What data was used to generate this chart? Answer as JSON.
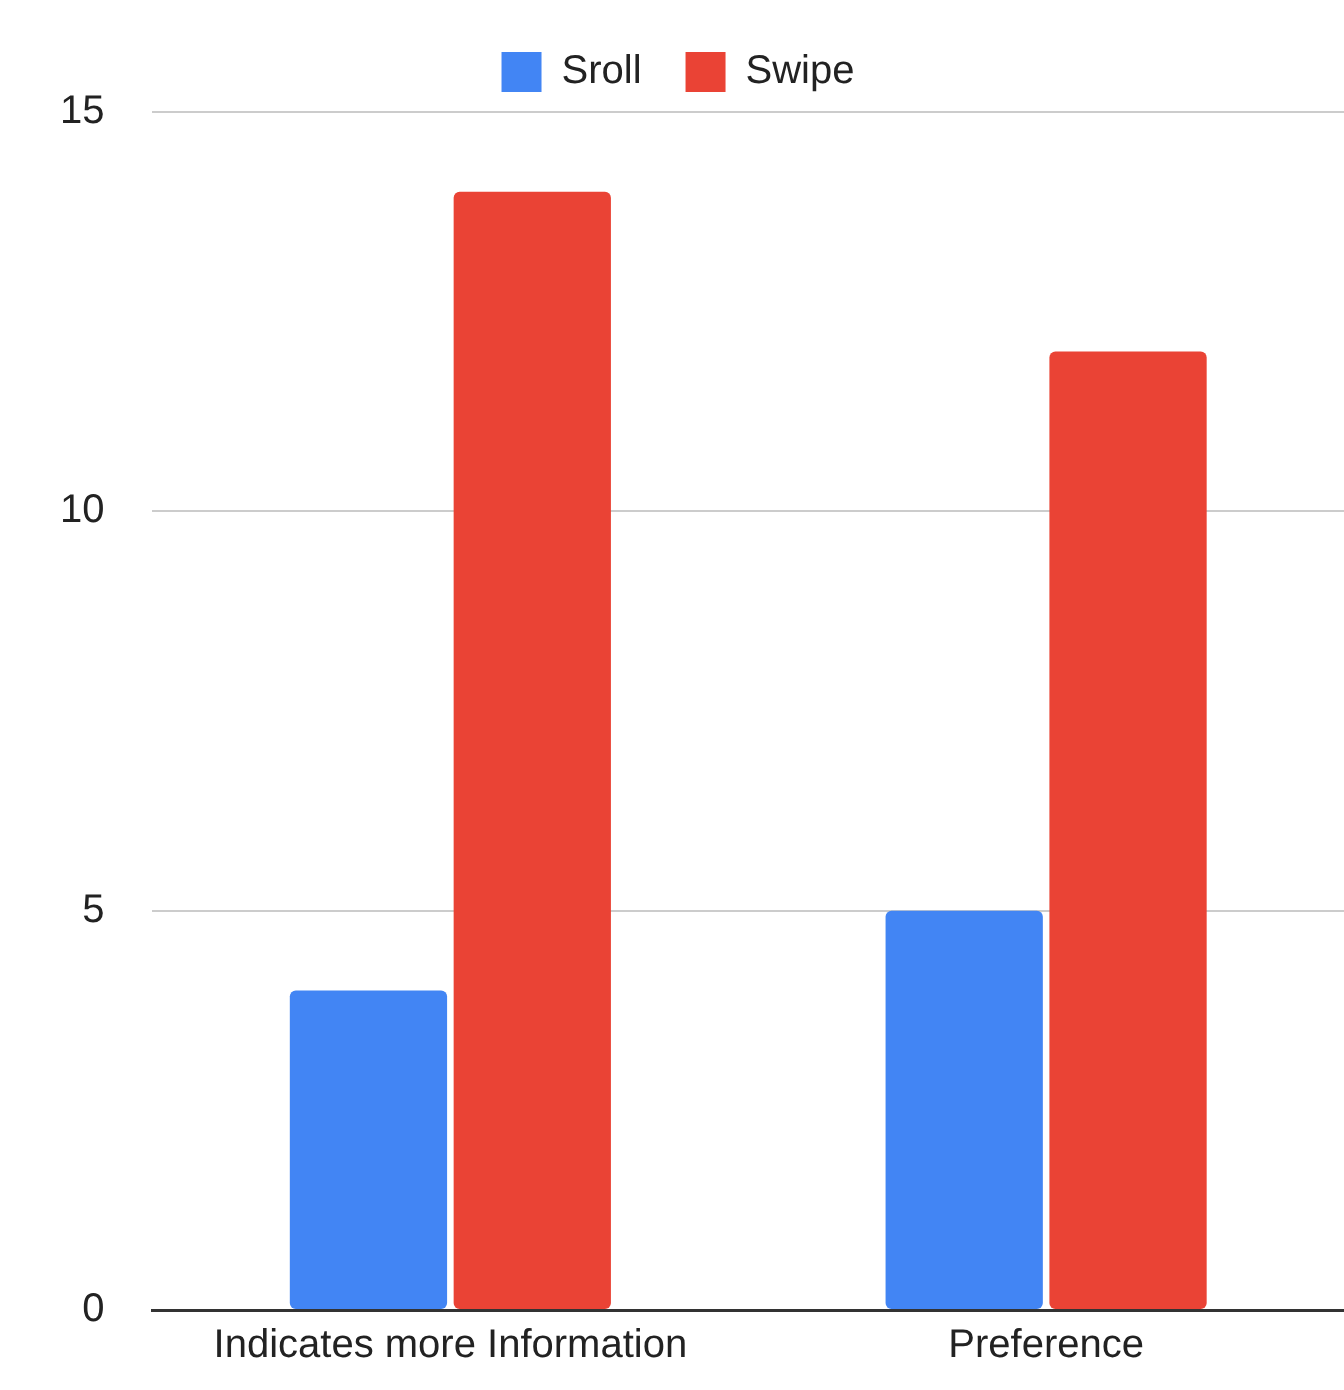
{
  "chart_data": {
    "type": "bar",
    "categories": [
      "Indicates more Information",
      "Preference"
    ],
    "series": [
      {
        "name": "Sroll",
        "color": "#4285f4",
        "values": [
          4,
          5
        ]
      },
      {
        "name": "Swipe",
        "color": "#ea4335",
        "values": [
          14,
          12
        ]
      }
    ],
    "ylim": [
      0,
      15
    ],
    "yticks": [
      0,
      5,
      10,
      15
    ],
    "grid": "y",
    "legend": "top"
  }
}
